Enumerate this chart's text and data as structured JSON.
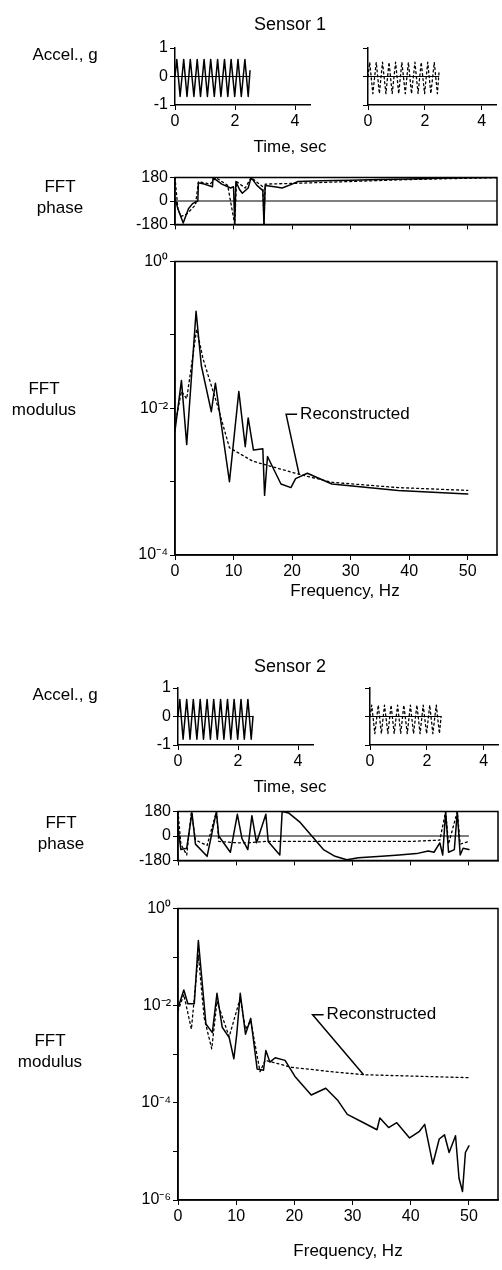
{
  "chart_data": [
    {
      "type": "line",
      "title": "Sensor 1",
      "ylabel": "Accel., g",
      "xlim": [
        0,
        4.5
      ],
      "xticks": [
        0,
        2,
        4
      ],
      "ylim": [
        -1,
        1
      ],
      "yticks": [
        -1,
        0,
        1
      ],
      "ref_lines": [
        {
          "axis": "y",
          "value": 0
        }
      ],
      "series": [
        {
          "color": "#000000",
          "line_style": "solid",
          "x": [
            0,
            0.06,
            0.17,
            0.29,
            0.4,
            0.51,
            0.63,
            0.74,
            0.85,
            0.97,
            1.08,
            1.19,
            1.31,
            1.42,
            1.53,
            1.65,
            1.76,
            1.87,
            1.99,
            2.1,
            2.21,
            2.33,
            2.44,
            2.5
          ],
          "values": [
            0,
            0.6,
            -0.7,
            0.6,
            -0.7,
            0.6,
            -0.7,
            0.6,
            -0.7,
            0.6,
            -0.7,
            0.6,
            -0.7,
            0.6,
            -0.7,
            0.6,
            -0.7,
            0.6,
            -0.7,
            0.6,
            -0.7,
            0.6,
            -0.7,
            0.2
          ]
        }
      ]
    },
    {
      "type": "line",
      "xlabel": "Time, sec",
      "xlim": [
        0,
        4.5
      ],
      "xticks": [
        0,
        2,
        4
      ],
      "ylim": [
        -1,
        1
      ],
      "yticks": [
        -1,
        0,
        1
      ],
      "tick_labels": "x",
      "ref_lines": [
        {
          "axis": "y",
          "value": 0
        }
      ],
      "series": [
        {
          "color": "#000000",
          "line_style": "dotted",
          "x": [
            0,
            0.06,
            0.17,
            0.29,
            0.4,
            0.51,
            0.63,
            0.74,
            0.85,
            0.97,
            1.08,
            1.19,
            1.31,
            1.42,
            1.53,
            1.65,
            1.76,
            1.87,
            1.99,
            2.1,
            2.21,
            2.33,
            2.44,
            2.5
          ],
          "values": [
            0,
            0.5,
            -0.6,
            0.5,
            -0.6,
            0.5,
            -0.6,
            0.5,
            -0.6,
            0.5,
            -0.6,
            0.5,
            -0.6,
            0.5,
            -0.6,
            0.5,
            -0.6,
            0.5,
            -0.6,
            0.5,
            -0.6,
            0.5,
            -0.6,
            0.2
          ]
        }
      ]
    },
    {
      "type": "line",
      "ylabel": "FFT phase",
      "xlim": [
        0,
        55
      ],
      "xticks": [
        0,
        10,
        20,
        30,
        40,
        50
      ],
      "ylim": [
        -180,
        180
      ],
      "yticks": [
        -180,
        0,
        180
      ],
      "tick_labels": "y",
      "ref_lines": [
        {
          "axis": "y",
          "value": 0
        }
      ],
      "series": [
        {
          "color": "#000000",
          "line_style": "solid",
          "x": [
            0,
            0.5,
            1.4,
            2.3,
            3,
            3.9,
            4,
            5,
            6.4,
            6.5,
            8,
            9.5,
            10,
            10.2,
            10.4,
            11,
            11.5,
            12.5,
            13,
            14,
            15,
            15.2,
            15.4,
            17,
            18.3,
            20,
            21,
            25,
            30,
            35,
            40,
            45,
            50,
            55
          ],
          "values": [
            20,
            -60,
            -170,
            -60,
            -20,
            0,
            140,
            130,
            110,
            180,
            130,
            100,
            110,
            -180,
            150,
            90,
            60,
            100,
            180,
            120,
            80,
            -180,
            120,
            110,
            100,
            130,
            150,
            155,
            160,
            165,
            170,
            175,
            178,
            180
          ]
        },
        {
          "color": "#000000",
          "line_style": "dotted",
          "x": [
            0,
            0.5,
            1,
            2,
            3.5,
            4,
            6,
            7,
            9,
            10.2,
            10.5,
            12,
            13,
            15,
            15.2,
            15.4,
            20,
            30,
            40,
            55
          ],
          "values": [
            180,
            -60,
            -120,
            -100,
            -30,
            150,
            130,
            180,
            120,
            -180,
            150,
            100,
            180,
            110,
            -180,
            130,
            135,
            150,
            165,
            180
          ]
        }
      ]
    },
    {
      "type": "line",
      "ylabel": "FFT modulus",
      "xlabel": "Frequency, Hz",
      "log": "y",
      "xlim": [
        0,
        55
      ],
      "xticks": [
        0,
        10,
        20,
        30,
        40,
        50
      ],
      "ylim": [
        0.0001,
        1
      ],
      "yticks": [
        {
          "value": 0.0001,
          "label": "10⁻⁴"
        },
        {
          "value": 0.001,
          "label": null
        },
        {
          "value": 0.01,
          "label": "10⁻²"
        },
        {
          "value": 0.1,
          "label": null
        },
        {
          "value": 1,
          "label": "10⁰"
        }
      ],
      "annotations": [
        {
          "text": "Reconstructed",
          "x": 21.2,
          "y": 0.00126
        }
      ],
      "series": [
        {
          "color": "#000000",
          "line_style": "solid",
          "x": [
            0,
            1.1,
            2,
            3.6,
            4.5,
            6.2,
            6.9,
            9.3,
            10.9,
            12,
            12.5,
            13.4,
            15,
            15.3,
            15.8,
            18.1,
            19.8,
            20.6,
            22.6,
            26.8,
            38.1,
            50
          ],
          "values": [
            0.0049,
            0.024,
            0.0032,
            0.21,
            0.038,
            0.009,
            0.022,
            0.001,
            0.017,
            0.003,
            0.0074,
            0.0027,
            0.0028,
            0.00065,
            0.0022,
            0.00093,
            0.00083,
            0.0011,
            0.0013,
            0.00093,
            0.00076,
            0.00068
          ]
        },
        {
          "color": "#000000",
          "line_style": "dotted",
          "x": [
            0,
            1.1,
            2,
            3.7,
            4.8,
            7.1,
            9.3,
            13.3,
            17.2,
            21.2,
            26.8,
            38.1,
            50
          ],
          "values": [
            0.006,
            0.017,
            0.0135,
            0.12,
            0.047,
            0.012,
            0.0029,
            0.0019,
            0.00155,
            0.00126,
            0.00098,
            0.00083,
            0.00076
          ]
        }
      ]
    },
    {
      "type": "line",
      "title": "Sensor 2",
      "ylabel": "Accel., g",
      "xlim": [
        0,
        4.5
      ],
      "xticks": [
        0,
        2,
        4
      ],
      "ylim": [
        -1,
        1
      ],
      "yticks": [
        -1,
        0,
        1
      ],
      "ref_lines": [
        {
          "axis": "y",
          "value": 0
        }
      ],
      "series": [
        {
          "color": "#000000",
          "line_style": "solid",
          "x": [
            0,
            0.06,
            0.17,
            0.29,
            0.4,
            0.51,
            0.63,
            0.74,
            0.85,
            0.97,
            1.08,
            1.19,
            1.31,
            1.42,
            1.53,
            1.65,
            1.76,
            1.87,
            1.99,
            2.1,
            2.21,
            2.33,
            2.44,
            2.5
          ],
          "values": [
            0,
            0.6,
            -0.8,
            0.6,
            -0.8,
            0.6,
            -0.8,
            0.6,
            -0.8,
            0.6,
            -0.8,
            0.6,
            -0.8,
            0.6,
            -0.8,
            0.6,
            -0.8,
            0.6,
            -0.8,
            0.6,
            -0.8,
            0.6,
            -0.8,
            0
          ]
        }
      ]
    },
    {
      "type": "line",
      "xlabel": "Time, sec",
      "xlim": [
        0,
        4.5
      ],
      "xticks": [
        0,
        2,
        4
      ],
      "ylim": [
        -1,
        1
      ],
      "yticks": [
        -1,
        0,
        1
      ],
      "tick_labels": "x",
      "ref_lines": [
        {
          "axis": "y",
          "value": 0
        }
      ],
      "series": [
        {
          "color": "#000000",
          "line_style": "dotted",
          "x": [
            0,
            0.06,
            0.17,
            0.29,
            0.4,
            0.51,
            0.63,
            0.74,
            0.85,
            0.97,
            1.08,
            1.19,
            1.31,
            1.42,
            1.53,
            1.65,
            1.76,
            1.87,
            1.99,
            2.1,
            2.21,
            2.33,
            2.44,
            2.5
          ],
          "values": [
            0,
            0.4,
            -0.6,
            0.4,
            -0.6,
            0.4,
            -0.6,
            0.4,
            -0.6,
            0.4,
            -0.6,
            0.4,
            -0.6,
            0.4,
            -0.6,
            0.4,
            -0.6,
            0.4,
            -0.6,
            0.4,
            -0.6,
            0.4,
            -0.6,
            0
          ]
        }
      ]
    },
    {
      "type": "line",
      "ylabel": "FFT phase",
      "xlim": [
        0,
        55
      ],
      "xticks": [
        0,
        10,
        20,
        30,
        40,
        50
      ],
      "ylim": [
        -180,
        180
      ],
      "yticks": [
        -180,
        0,
        180
      ],
      "tick_labels": "y",
      "ref_lines": [
        {
          "axis": "y",
          "value": 0
        }
      ],
      "series": [
        {
          "color": "#000000",
          "line_style": "solid",
          "x": [
            0,
            0.5,
            1.5,
            2.4,
            3,
            5,
            6.6,
            7,
            9,
            10.2,
            11,
            12,
            12.7,
            13.5,
            15.1,
            15.5,
            17.5,
            17.9,
            19,
            21,
            23,
            25,
            27,
            29,
            31,
            35,
            38,
            41,
            43,
            44,
            45,
            45.5,
            46,
            46.5,
            47.5,
            48,
            48.5,
            49,
            50
          ],
          "values": [
            60,
            -100,
            -90,
            170,
            -60,
            -150,
            180,
            0,
            -120,
            160,
            -20,
            -100,
            150,
            -50,
            160,
            -40,
            -140,
            180,
            170,
            100,
            0,
            -100,
            -150,
            -175,
            -160,
            -150,
            -140,
            -130,
            -110,
            -120,
            -50,
            -140,
            180,
            -120,
            -100,
            180,
            -140,
            -90,
            -100
          ]
        },
        {
          "color": "#000000",
          "line_style": "dotted",
          "x": [
            0,
            0.5,
            1.5,
            2.3,
            3,
            5,
            6.6,
            7,
            10,
            12,
            15,
            20,
            30,
            40,
            45,
            46,
            46.5,
            48,
            48.5,
            50
          ],
          "values": [
            180,
            -60,
            -140,
            180,
            -30,
            -70,
            180,
            -40,
            -50,
            -50,
            -40,
            -40,
            -40,
            -40,
            -30,
            180,
            -60,
            180,
            -60,
            -40
          ]
        }
      ]
    },
    {
      "type": "line",
      "ylabel": "FFT modulus",
      "xlabel": "Frequency, Hz",
      "log": "y",
      "xlim": [
        0,
        55
      ],
      "xticks": [
        0,
        10,
        20,
        30,
        40,
        50
      ],
      "ylim": [
        1e-06,
        1
      ],
      "yticks": [
        {
          "value": 1e-06,
          "label": "10⁻⁶"
        },
        {
          "value": 1e-05,
          "label": null
        },
        {
          "value": 0.0001,
          "label": "10⁻⁴"
        },
        {
          "value": 0.001,
          "label": null
        },
        {
          "value": 0.01,
          "label": "10⁻²"
        },
        {
          "value": 0.1,
          "label": null
        },
        {
          "value": 1,
          "label": "10⁰"
        }
      ],
      "annotations": [
        {
          "text": "Reconstructed",
          "x": 31.9,
          "y": 0.00038
        }
      ],
      "series": [
        {
          "color": "#000000",
          "line_style": "solid",
          "x": [
            0,
            1,
            1.7,
            2.8,
            3.5,
            4.8,
            5.9,
            6.7,
            7.6,
            8.8,
            9.6,
            10.1,
            10.7,
            11.6,
            12.5,
            13.6,
            14.7,
            15.1,
            15.8,
            16.7,
            18.4,
            20.1,
            22.9,
            25.4,
            27.4,
            29.1,
            31.9,
            34.2,
            34.7,
            36.2,
            37.6,
            39.8,
            41.5,
            42.4,
            43.8,
            44.9,
            45.8,
            46.6,
            47.7,
            48.3,
            48.9,
            49.4,
            50
          ],
          "values": [
            0.009,
            0.021,
            0.011,
            0.011,
            0.22,
            0.0042,
            0.0028,
            0.018,
            0.0036,
            0.0022,
            0.00081,
            0.0026,
            0.018,
            0.0026,
            0.0055,
            0.0005,
            0.00047,
            0.0012,
            0.00069,
            0.00085,
            0.00075,
            0.00035,
            0.000145,
            0.0002,
            0.000115,
            5.8e-05,
            3.9e-05,
            2.8e-05,
            4.9e-05,
            3.1e-05,
            3.9e-05,
            1.9e-05,
            2.6e-05,
            3.6e-05,
            5.5e-06,
            1.8e-05,
            2.2e-05,
            9.5e-06,
            2.1e-05,
            2.8e-06,
            1.5e-06,
            9.5e-06,
            1.3e-05
          ]
        },
        {
          "color": "#000000",
          "line_style": "dotted",
          "x": [
            0,
            1,
            2.3,
            3.5,
            4.5,
            5.8,
            6.7,
            8.8,
            10.7,
            11.6,
            12.5,
            14.1,
            15,
            19.5,
            26.3,
            31.9,
            50
          ],
          "values": [
            0.0078,
            0.017,
            0.0033,
            0.11,
            0.0056,
            0.0013,
            0.0123,
            0.0023,
            0.0145,
            0.0033,
            0.0049,
            0.00044,
            0.00075,
            0.00054,
            0.00044,
            0.00038,
            0.00033
          ]
        }
      ]
    }
  ]
}
